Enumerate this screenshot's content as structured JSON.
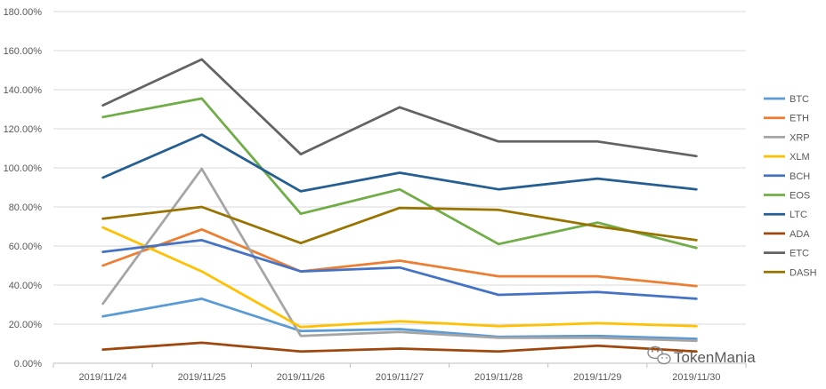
{
  "chart_data": {
    "type": "line",
    "categories": [
      "2019/11/24",
      "2019/11/25",
      "2019/11/26",
      "2019/11/27",
      "2019/11/28",
      "2019/11/29",
      "2019/11/30"
    ],
    "y_ticks": [
      "0.00%",
      "20.00%",
      "40.00%",
      "60.00%",
      "80.00%",
      "100.00%",
      "120.00%",
      "140.00%",
      "160.00%",
      "180.00%"
    ],
    "ylim": [
      0,
      180
    ],
    "y_unit": "%",
    "grid": true,
    "legend_position": "right",
    "series": [
      {
        "name": "BTC",
        "color": "#5B9BD5",
        "values": [
          24,
          33,
          16.5,
          17.5,
          13.5,
          14,
          12.5
        ]
      },
      {
        "name": "ETH",
        "color": "#ED7D31",
        "values": [
          50,
          68.5,
          47,
          52.5,
          44.5,
          44.5,
          39.5
        ]
      },
      {
        "name": "XRP",
        "color": "#A5A5A5",
        "values": [
          30.5,
          99.5,
          14,
          16,
          13,
          13,
          11.5
        ]
      },
      {
        "name": "XLM",
        "color": "#FFC000",
        "values": [
          69.5,
          47,
          18.5,
          21.5,
          19,
          20.5,
          19
        ]
      },
      {
        "name": "BCH",
        "color": "#4472C4",
        "values": [
          57,
          63,
          47,
          49,
          35,
          36.5,
          33
        ]
      },
      {
        "name": "EOS",
        "color": "#70AD47",
        "values": [
          126,
          135.5,
          76.5,
          89,
          61,
          72,
          59
        ]
      },
      {
        "name": "LTC",
        "color": "#255E91",
        "values": [
          95,
          117,
          88,
          97.5,
          89,
          94.5,
          89
        ]
      },
      {
        "name": "ADA",
        "color": "#9E480E",
        "values": [
          7,
          10.5,
          6,
          7.5,
          6,
          9,
          6
        ]
      },
      {
        "name": "ETC",
        "color": "#636363",
        "values": [
          132,
          155.5,
          107,
          131,
          113.5,
          113.5,
          106
        ]
      },
      {
        "name": "DASH",
        "color": "#997300",
        "values": [
          74,
          80,
          61.5,
          79.5,
          78.5,
          70,
          63
        ]
      }
    ]
  },
  "watermark": {
    "text": "TokenMania",
    "icon": "wechat-icon"
  }
}
